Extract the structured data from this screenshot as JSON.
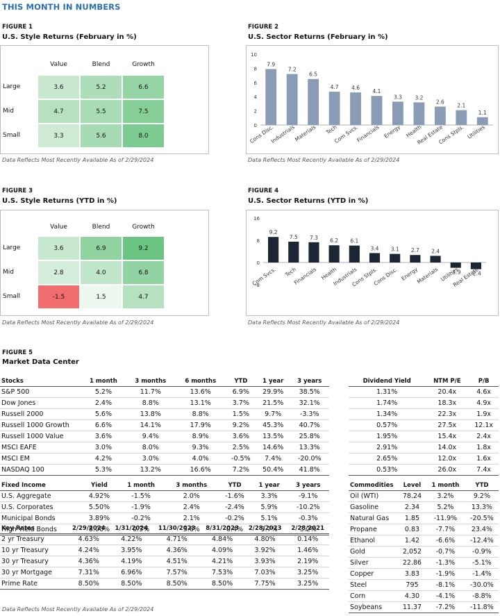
{
  "header": {
    "title": "THIS MONTH IN NUMBERS"
  },
  "figure1": {
    "label": "FIGURE 1",
    "title": "U.S. Style Returns (February in %)",
    "cols": [
      "Value",
      "Blend",
      "Growth"
    ],
    "rows": [
      "Large",
      "Mid",
      "Small"
    ],
    "values": [
      [
        3.6,
        5.2,
        6.6
      ],
      [
        4.7,
        5.5,
        7.5
      ],
      [
        3.3,
        5.6,
        8.0
      ]
    ],
    "display": [
      [
        "3.6",
        "5.2",
        "6.6"
      ],
      [
        "4.7",
        "5.5",
        "7.5"
      ],
      [
        "3.3",
        "5.6",
        "8.0"
      ]
    ],
    "note": "Data Reflects Most Recently Available As of 2/29/2024"
  },
  "figure2": {
    "label": "FIGURE 2",
    "title": "U.S. Sector Returns (February in %)",
    "note": "Data Reflects Most Recently Available As of 2/29/2024"
  },
  "figure3": {
    "label": "FIGURE 3",
    "title": "U.S. Style Returns (YTD in %)",
    "cols": [
      "Value",
      "Blend",
      "Growth"
    ],
    "rows": [
      "Large",
      "Mid",
      "Small"
    ],
    "values": [
      [
        3.6,
        6.9,
        9.2
      ],
      [
        2.8,
        4.0,
        6.8
      ],
      [
        -1.5,
        1.5,
        4.7
      ]
    ],
    "display": [
      [
        "3.6",
        "6.9",
        "9.2"
      ],
      [
        "2.8",
        "4.0",
        "6.8"
      ],
      [
        "-1.5",
        "1.5",
        "4.7"
      ]
    ],
    "note": "Data Reflects Most Recently Available As of 2/29/2024"
  },
  "figure4": {
    "label": "FIGURE 4",
    "title": "U.S. Sector Returns (YTD in %)",
    "note": "Data Reflects Most Recently Available As of 2/29/2024"
  },
  "chart_data": [
    {
      "type": "bar",
      "categories": [
        "Cons Disc.",
        "Industrials",
        "Materials",
        "Tech",
        "Com Svcs.",
        "Financials",
        "Energy",
        "Health",
        "Real Estate",
        "Cons Stpls.",
        "Utilities"
      ],
      "values": [
        7.9,
        7.2,
        6.5,
        4.7,
        4.6,
        4.1,
        3.3,
        3.2,
        2.6,
        2.1,
        1.1
      ],
      "labels": [
        "7.9",
        "7.2",
        "6.5",
        "4.7",
        "4.6",
        "4.1",
        "3.3",
        "3.2",
        "2.6",
        "2.1",
        "1.1"
      ],
      "ylim": [
        0,
        10
      ],
      "yticks": [
        0,
        2,
        4,
        6,
        8,
        10
      ],
      "grid": false,
      "color": "#8a9bb5"
    },
    {
      "type": "bar",
      "categories": [
        "Com Svcs.",
        "Tech",
        "Financials",
        "Health",
        "Industrials",
        "Cons Stpls.",
        "Cons Disc.",
        "Energy",
        "Materials",
        "Utilities",
        "Real Estate"
      ],
      "values": [
        9.2,
        7.5,
        7.3,
        6.2,
        6.1,
        3.4,
        3.1,
        2.7,
        2.4,
        -1.9,
        -2.4
      ],
      "labels": [
        "9.2",
        "7.5",
        "7.3",
        "6.2",
        "6.1",
        "3.4",
        "3.1",
        "2.7",
        "2.4",
        "-1.9",
        "-2.4"
      ],
      "ylim": [
        -8,
        16
      ],
      "yticks": [
        -8,
        0,
        8,
        16
      ],
      "grid": false,
      "color": "#1c2533"
    }
  ],
  "figure5": {
    "label": "FIGURE 5",
    "title": "Market Data Center",
    "stocks": {
      "headers": [
        "Stocks",
        "1 month",
        "3 months",
        "6 months",
        "YTD",
        "1 year",
        "3 years"
      ],
      "rows": [
        [
          "S&P 500",
          "5.2%",
          "11.7%",
          "13.6%",
          "6.9%",
          "29.9%",
          "38.5%"
        ],
        [
          "Dow Jones",
          "2.4%",
          "8.8%",
          "13.1%",
          "3.7%",
          "21.5%",
          "32.1%"
        ],
        [
          "Russell 2000",
          "5.6%",
          "13.8%",
          "8.8%",
          "1.5%",
          "9.7%",
          "-3.3%"
        ],
        [
          "Russell 1000 Growth",
          "6.6%",
          "14.1%",
          "17.9%",
          "9.2%",
          "45.3%",
          "40.7%"
        ],
        [
          "Russell 1000 Value",
          "3.6%",
          "9.4%",
          "8.9%",
          "3.6%",
          "13.5%",
          "25.8%"
        ],
        [
          "MSCI EAFE",
          "3.0%",
          "8.0%",
          "9.3%",
          "2.5%",
          "14.6%",
          "13.3%"
        ],
        [
          "MSCI EM",
          "4.2%",
          "3.0%",
          "4.0%",
          "-0.5%",
          "7.4%",
          "-20.0%"
        ],
        [
          "NASDAQ 100",
          "5.3%",
          "13.2%",
          "16.6%",
          "7.2%",
          "50.4%",
          "41.8%"
        ]
      ]
    },
    "dividends": {
      "headers": [
        "Dividend Yield",
        "NTM P/E",
        "P/B"
      ],
      "rows": [
        [
          "1.31%",
          "20.4x",
          "4.6x"
        ],
        [
          "1.74%",
          "18.3x",
          "4.9x"
        ],
        [
          "1.34%",
          "22.3x",
          "1.9x"
        ],
        [
          "0.57%",
          "27.5x",
          "12.1x"
        ],
        [
          "1.95%",
          "15.4x",
          "2.4x"
        ],
        [
          "2.91%",
          "14.0x",
          "1.8x"
        ],
        [
          "2.65%",
          "12.0x",
          "1.6x"
        ],
        [
          "0.53%",
          "26.0x",
          "7.4x"
        ]
      ]
    },
    "fixed_income": {
      "headers": [
        "Fixed Income",
        "Yield",
        "1 month",
        "3 months",
        "YTD",
        "1 year",
        "3 years"
      ],
      "rows": [
        [
          "U.S. Aggregate",
          "4.92%",
          "-1.5%",
          "2.0%",
          "-1.6%",
          "3.3%",
          "-9.1%"
        ],
        [
          "U.S. Corporates",
          "5.50%",
          "-1.9%",
          "2.4%",
          "-2.4%",
          "5.9%",
          "-10.2%"
        ],
        [
          "Municipal Bonds",
          "3.89%",
          "-0.2%",
          "2.1%",
          "-0.2%",
          "5.1%",
          "-0.3%"
        ],
        [
          "High Yield Bonds",
          "8.00%",
          "0.3%",
          "3.6%",
          "0.4%",
          "9.7%",
          "3.2%"
        ]
      ]
    },
    "key_rates": {
      "headers": [
        "Key Rates",
        "2/29/2024",
        "1/31/2024",
        "11/30/2023",
        "8/31/2023",
        "2/28/2023",
        "2/28/2021"
      ],
      "rows": [
        [
          "2 yr Treasury",
          "4.63%",
          "4.22%",
          "4.71%",
          "4.84%",
          "4.80%",
          "0.14%"
        ],
        [
          "10 yr Treasury",
          "4.24%",
          "3.95%",
          "4.36%",
          "4.09%",
          "3.92%",
          "1.46%"
        ],
        [
          "30 yr Treasury",
          "4.36%",
          "4.19%",
          "4.51%",
          "4.21%",
          "3.93%",
          "2.19%"
        ],
        [
          "30 yr Mortgage",
          "7.31%",
          "6.96%",
          "7.57%",
          "7.53%",
          "7.03%",
          "3.25%"
        ],
        [
          "Prime Rate",
          "8.50%",
          "8.50%",
          "8.50%",
          "8.50%",
          "7.75%",
          "3.25%"
        ]
      ]
    },
    "commodities": {
      "headers": [
        "Commodities",
        "Level",
        "1 month",
        "YTD"
      ],
      "rows": [
        [
          "Oil (WTI)",
          "78.24",
          "3.2%",
          "9.2%"
        ],
        [
          "Gasoline",
          "2.34",
          "5.2%",
          "13.3%"
        ],
        [
          "Natural Gas",
          "1.85",
          "-11.9%",
          "-20.5%"
        ],
        [
          "Propane",
          "0.83",
          "-7.7%",
          "23.4%"
        ],
        [
          "Ethanol",
          "1.42",
          "-6.6%",
          "-12.4%"
        ],
        [
          "Gold",
          "2,052",
          "-0.7%",
          "-0.9%"
        ],
        [
          "Silver",
          "22.86",
          "-1.3%",
          "-5.1%"
        ],
        [
          "Copper",
          "3.83",
          "-1.9%",
          "-1.4%"
        ],
        [
          "Steel",
          "795",
          "-8.1%",
          "-30.0%"
        ],
        [
          "Corn",
          "4.30",
          "-4.1%",
          "-8.8%"
        ],
        [
          "Soybeans",
          "11.37",
          "-7.2%",
          "-11.8%"
        ]
      ]
    },
    "note": "Data Reflects Most Recently Available As of 2/29/2024"
  }
}
